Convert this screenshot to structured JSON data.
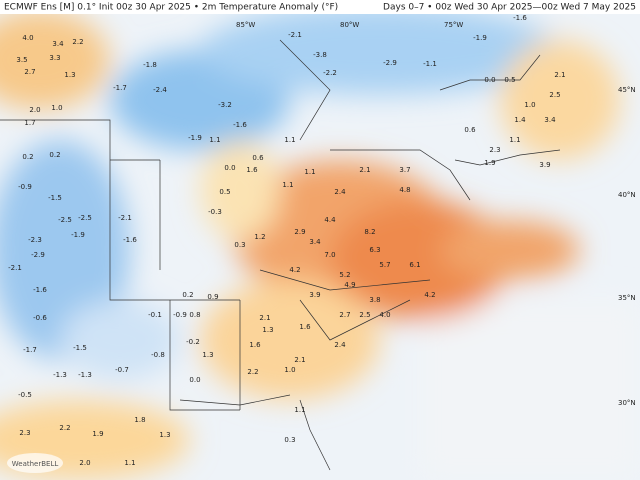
{
  "header": {
    "title": "ECMWF Ens [M] 0.1° Init 00z 30 Apr 2025 • 2m Temperature Anomaly (°F)",
    "period": "Days 0–7 • 00z Wed 30 Apr 2025—00z Wed 7 May 2025"
  },
  "longitude_labels": [
    "85°W",
    "80°W",
    "75°W"
  ],
  "latitude_labels": [
    "45°N",
    "40°N",
    "35°N",
    "30°N"
  ],
  "logo": "WeatherBELL",
  "anomaly_labels": [
    "4.0",
    "3.4",
    "2.2",
    "3.5",
    "2.7",
    "3.3",
    "1.3",
    "2.0",
    "1.0",
    "1.7",
    "0.2",
    "0.2",
    "-0.9",
    "-1.5",
    "-2.5",
    "-2.5",
    "-1.9",
    "-2.3",
    "-2.9",
    "-2.1",
    "-1.6",
    "-0.6",
    "-1.7",
    "-1.5",
    "-1.3",
    "-1.3",
    "-0.5",
    "2.3",
    "2.2",
    "1.9",
    "2.0",
    "1.1",
    "1.3",
    "1.8",
    "-1.8",
    "-1.7",
    "-2.4",
    "-3.2",
    "-1.6",
    "-1.9",
    "1.1",
    "0.0",
    "0.6",
    "-3.8",
    "-2.2",
    "-2.1",
    "-2.9",
    "-1.1",
    "-1.9",
    "-1.6",
    "0.0",
    "0.5",
    "2.1",
    "2.5",
    "1.0",
    "1.4",
    "3.4",
    "1.1",
    "2.3",
    "0.6",
    "1.9",
    "3.9",
    "2.1",
    "3.7",
    "4.8",
    "8.2",
    "6.3",
    "5.7",
    "4.4",
    "3.4",
    "7.0",
    "2.9",
    "5.2",
    "4.9",
    "3.9",
    "3.8",
    "2.7",
    "2.5",
    "4.0",
    "4.2",
    "6.1",
    "2.1",
    "1.3",
    "1.6",
    "2.1",
    "2.4",
    "1.6",
    "2.2",
    "1.0",
    "0.2",
    "0.9",
    "-0.1",
    "-0.9",
    "0.8",
    "-0.8",
    "-0.2",
    "1.3",
    "0.0",
    "-0.7",
    "-0.3",
    "0.5",
    "1.6",
    "0.3",
    "1.2",
    "4.2",
    "1.1",
    "2.4",
    "1.1",
    "-1.6",
    "-2.1",
    "1.1",
    "1.1",
    "0.3"
  ]
}
